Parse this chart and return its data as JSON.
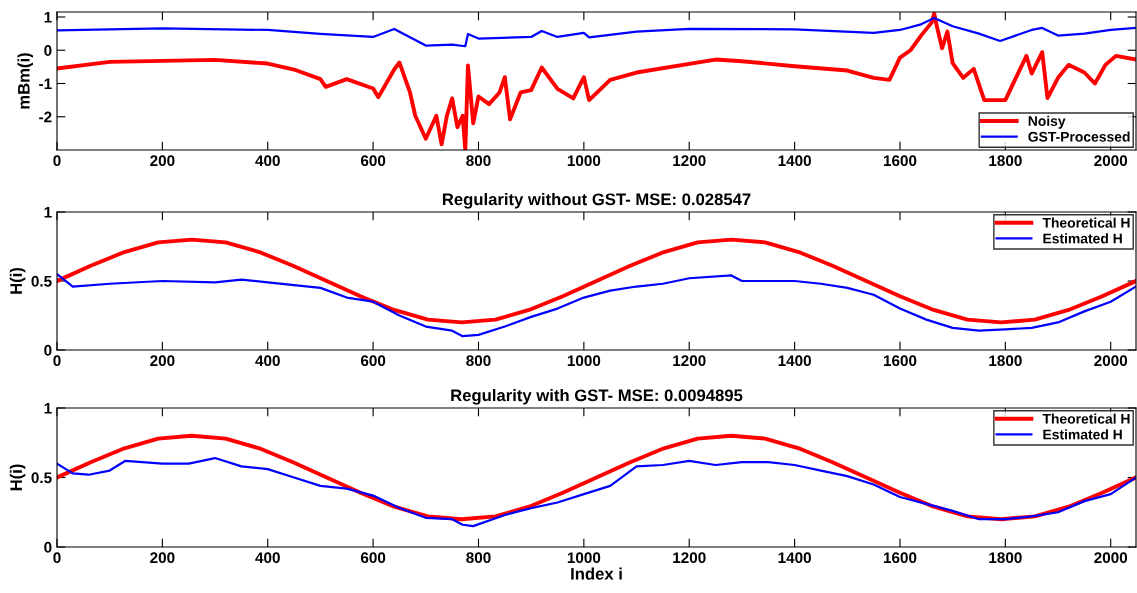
{
  "chart_data": [
    {
      "type": "line",
      "ylabel": "mBm(i)",
      "xlim": [
        0,
        2048
      ],
      "ylim": [
        -3,
        1.15
      ],
      "xticks": [
        0,
        200,
        400,
        600,
        800,
        1000,
        1200,
        1400,
        1600,
        1800,
        2000
      ],
      "yticks": [
        -2,
        -1,
        0,
        1
      ],
      "legend": "bottom right",
      "grid": false,
      "series": [
        {
          "name": "Noisy",
          "color": "#ff0000",
          "x": [
            0,
            100,
            200,
            300,
            400,
            450,
            500,
            510,
            550,
            600,
            610,
            640,
            650,
            670,
            680,
            700,
            720,
            730,
            740,
            750,
            760,
            770,
            775,
            780,
            790,
            800,
            820,
            840,
            850,
            860,
            880,
            900,
            920,
            950,
            980,
            1000,
            1010,
            1050,
            1100,
            1200,
            1250,
            1300,
            1400,
            1500,
            1550,
            1580,
            1600,
            1620,
            1640,
            1660,
            1665,
            1670,
            1680,
            1690,
            1700,
            1720,
            1740,
            1760,
            1780,
            1800,
            1820,
            1840,
            1850,
            1870,
            1880,
            1900,
            1920,
            1950,
            1970,
            1990,
            2010,
            2048
          ],
          "values": [
            -0.55,
            -0.35,
            -0.32,
            -0.29,
            -0.4,
            -0.58,
            -0.87,
            -1.1,
            -0.87,
            -1.15,
            -1.41,
            -0.58,
            -0.37,
            -1.27,
            -1.97,
            -2.66,
            -1.97,
            -2.83,
            -1.97,
            -1.45,
            -2.31,
            -1.97,
            -3.0,
            -0.46,
            -2.2,
            -1.39,
            -1.62,
            -1.27,
            -0.81,
            -2.08,
            -1.27,
            -1.2,
            -0.52,
            -1.16,
            -1.45,
            -0.81,
            -1.5,
            -0.89,
            -0.67,
            -0.41,
            -0.28,
            -0.33,
            -0.48,
            -0.61,
            -0.83,
            -0.89,
            -0.22,
            0,
            0.44,
            0.83,
            1.1,
            0.72,
            0.06,
            0.56,
            -0.39,
            -0.83,
            -0.56,
            -1.5,
            -1.5,
            -1.5,
            -0.83,
            -0.17,
            -0.7,
            -0.06,
            -1.44,
            -0.83,
            -0.44,
            -0.67,
            -1.0,
            -0.44,
            -0.17,
            -0.28
          ]
        },
        {
          "name": "GST-Processed",
          "color": "#0000ff",
          "x": [
            0,
            200,
            400,
            500,
            600,
            640,
            700,
            750,
            775,
            780,
            800,
            900,
            920,
            950,
            1000,
            1010,
            1100,
            1200,
            1400,
            1550,
            1600,
            1640,
            1665,
            1700,
            1750,
            1790,
            1850,
            1870,
            1900,
            1950,
            2000,
            2048
          ],
          "values": [
            0.6,
            0.66,
            0.61,
            0.49,
            0.4,
            0.64,
            0.14,
            0.17,
            0.12,
            0.49,
            0.35,
            0.4,
            0.58,
            0.4,
            0.52,
            0.39,
            0.56,
            0.64,
            0.63,
            0.52,
            0.61,
            0.78,
            0.97,
            0.72,
            0.5,
            0.28,
            0.61,
            0.67,
            0.44,
            0.5,
            0.61,
            0.67
          ]
        }
      ]
    },
    {
      "type": "line",
      "title": "Regularity without GST- MSE: 0.028547",
      "ylabel": "H(i)",
      "xlim": [
        0,
        2048
      ],
      "ylim": [
        0,
        1
      ],
      "xticks": [
        0,
        200,
        400,
        600,
        800,
        1000,
        1200,
        1400,
        1600,
        1800,
        2000
      ],
      "yticks": [
        0,
        0.5,
        1
      ],
      "legend": "top right",
      "grid": false,
      "series": [
        {
          "name": "Theoretical H",
          "color": "#ff0000",
          "x": [
            0,
            64,
            128,
            192,
            256,
            320,
            384,
            448,
            512,
            576,
            640,
            704,
            768,
            832,
            896,
            960,
            1024,
            1088,
            1152,
            1216,
            1280,
            1344,
            1408,
            1472,
            1536,
            1600,
            1664,
            1728,
            1792,
            1856,
            1920,
            1984,
            2048
          ],
          "values": [
            0.5,
            0.61,
            0.71,
            0.78,
            0.8,
            0.78,
            0.71,
            0.61,
            0.5,
            0.39,
            0.29,
            0.22,
            0.2,
            0.22,
            0.29,
            0.39,
            0.5,
            0.61,
            0.71,
            0.78,
            0.8,
            0.78,
            0.71,
            0.61,
            0.5,
            0.39,
            0.29,
            0.22,
            0.2,
            0.22,
            0.29,
            0.39,
            0.5
          ]
        },
        {
          "name": "Estimated H",
          "color": "#0000ff",
          "x": [
            0,
            30,
            100,
            200,
            300,
            350,
            400,
            500,
            550,
            600,
            650,
            700,
            750,
            770,
            800,
            850,
            900,
            950,
            1000,
            1050,
            1100,
            1150,
            1200,
            1280,
            1300,
            1400,
            1450,
            1500,
            1550,
            1600,
            1650,
            1700,
            1750,
            1800,
            1850,
            1900,
            1950,
            2000,
            2048
          ],
          "values": [
            0.55,
            0.46,
            0.48,
            0.5,
            0.49,
            0.51,
            0.49,
            0.45,
            0.38,
            0.35,
            0.25,
            0.17,
            0.14,
            0.1,
            0.11,
            0.17,
            0.24,
            0.3,
            0.38,
            0.43,
            0.46,
            0.48,
            0.52,
            0.54,
            0.5,
            0.5,
            0.48,
            0.45,
            0.4,
            0.3,
            0.22,
            0.16,
            0.14,
            0.15,
            0.16,
            0.2,
            0.28,
            0.35,
            0.46
          ]
        }
      ]
    },
    {
      "type": "line",
      "title": "Regularity with GST- MSE: 0.0094895",
      "xlabel": "Index i",
      "ylabel": "H(i)",
      "xlim": [
        0,
        2048
      ],
      "ylim": [
        0,
        1
      ],
      "xticks": [
        0,
        200,
        400,
        600,
        800,
        1000,
        1200,
        1400,
        1600,
        1800,
        2000
      ],
      "yticks": [
        0,
        0.5,
        1
      ],
      "legend": "top right",
      "grid": false,
      "series": [
        {
          "name": "Theoretical H",
          "color": "#ff0000",
          "x": [
            0,
            64,
            128,
            192,
            256,
            320,
            384,
            448,
            512,
            576,
            640,
            704,
            768,
            832,
            896,
            960,
            1024,
            1088,
            1152,
            1216,
            1280,
            1344,
            1408,
            1472,
            1536,
            1600,
            1664,
            1728,
            1792,
            1856,
            1920,
            1984,
            2048
          ],
          "values": [
            0.5,
            0.61,
            0.71,
            0.78,
            0.8,
            0.78,
            0.71,
            0.61,
            0.5,
            0.39,
            0.29,
            0.22,
            0.2,
            0.22,
            0.29,
            0.39,
            0.5,
            0.61,
            0.71,
            0.78,
            0.8,
            0.78,
            0.71,
            0.61,
            0.5,
            0.39,
            0.29,
            0.22,
            0.2,
            0.22,
            0.29,
            0.39,
            0.5
          ]
        },
        {
          "name": "Estimated H",
          "color": "#0000ff",
          "x": [
            0,
            30,
            60,
            100,
            130,
            200,
            250,
            300,
            350,
            400,
            450,
            500,
            550,
            600,
            650,
            700,
            750,
            770,
            790,
            850,
            900,
            950,
            1000,
            1050,
            1100,
            1150,
            1200,
            1250,
            1300,
            1350,
            1400,
            1450,
            1500,
            1550,
            1600,
            1650,
            1700,
            1750,
            1800,
            1850,
            1900,
            1950,
            2000,
            2048
          ],
          "values": [
            0.6,
            0.53,
            0.52,
            0.55,
            0.62,
            0.6,
            0.6,
            0.64,
            0.58,
            0.56,
            0.5,
            0.44,
            0.42,
            0.37,
            0.28,
            0.21,
            0.2,
            0.16,
            0.15,
            0.23,
            0.28,
            0.32,
            0.38,
            0.44,
            0.58,
            0.59,
            0.62,
            0.59,
            0.61,
            0.61,
            0.59,
            0.55,
            0.51,
            0.45,
            0.36,
            0.31,
            0.26,
            0.2,
            0.2,
            0.22,
            0.25,
            0.33,
            0.38,
            0.5
          ]
        }
      ]
    }
  ]
}
